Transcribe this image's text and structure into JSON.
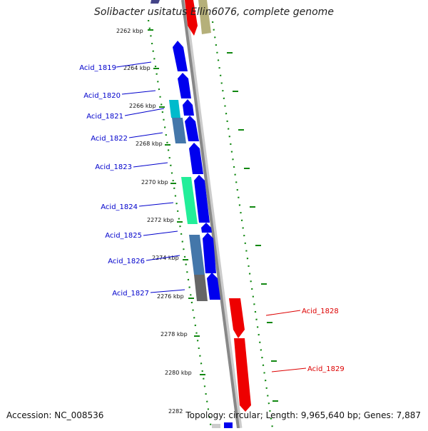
{
  "map": {
    "title": "Solibacter usitatus Ellin6076, complete genome",
    "accession": "Accession: NC_008536",
    "summary": "Topology: circular; Length: 9,965,640 bp; Genes: 7,887"
  },
  "colors": {
    "forward_gene": "#0000ee",
    "reverse_gene": "#ee0000",
    "label_forward": "#0000cc",
    "label_reverse": "#dd0000",
    "backbone": "#888888",
    "tick_dots": "#118811"
  },
  "scale": {
    "ticks": [
      "2262 kbp",
      "2264 kbp",
      "2266 kbp",
      "2268 kbp",
      "2270 kbp",
      "2272 kbp",
      "2274 kbp",
      "2276 kbp",
      "2278 kbp",
      "2280 kbp",
      "2282"
    ]
  },
  "genes": [
    {
      "label": "Acid_1819",
      "strand": "forward"
    },
    {
      "label": "Acid_1820",
      "strand": "forward"
    },
    {
      "label": "Acid_1821",
      "strand": "forward"
    },
    {
      "label": "Acid_1822",
      "strand": "forward"
    },
    {
      "label": "Acid_1823",
      "strand": "forward"
    },
    {
      "label": "Acid_1824",
      "strand": "forward"
    },
    {
      "label": "Acid_1825",
      "strand": "forward"
    },
    {
      "label": "Acid_1826",
      "strand": "forward"
    },
    {
      "label": "Acid_1827",
      "strand": "forward"
    },
    {
      "label": "Acid_1828",
      "strand": "reverse"
    },
    {
      "label": "Acid_1829",
      "strand": "reverse"
    }
  ]
}
